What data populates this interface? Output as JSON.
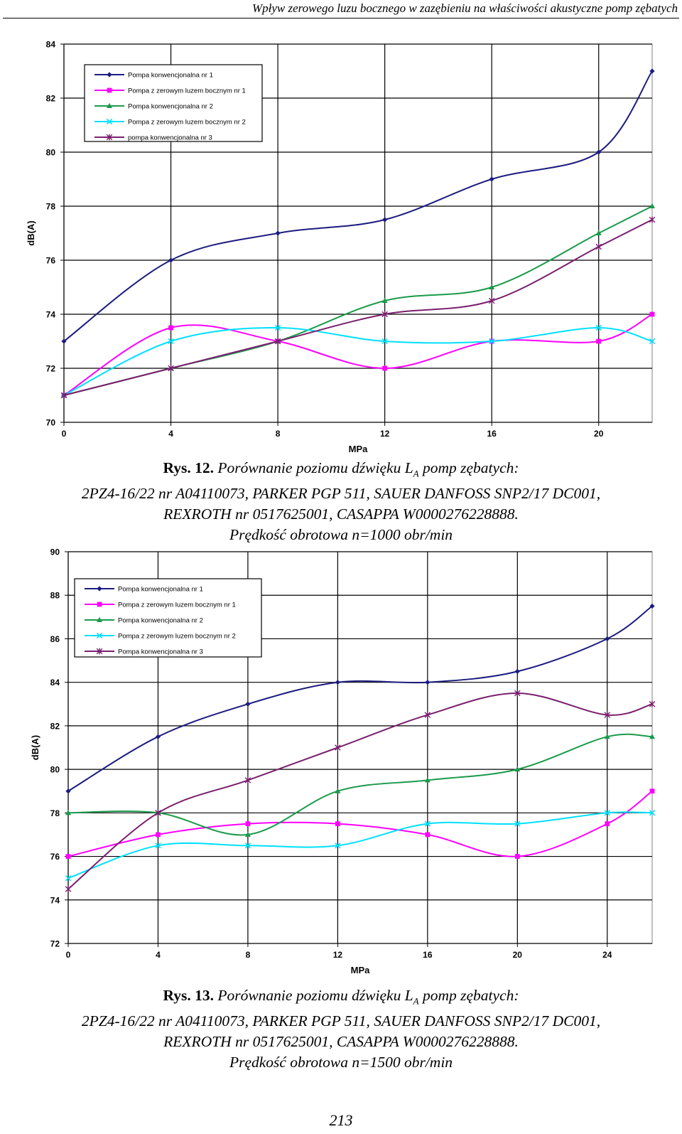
{
  "header": {
    "running_title": "Wpływ zerowego luzu bocznego w zazębieniu na właściwości akustyczne pomp zębatych"
  },
  "chart_data": [
    {
      "type": "line",
      "xlabel": "MPa",
      "ylabel": "dB(A)",
      "xlim": [
        0,
        22
      ],
      "ylim": [
        70,
        84
      ],
      "x_ticks": [
        0,
        4,
        8,
        12,
        16,
        20
      ],
      "y_ticks": [
        70,
        72,
        74,
        76,
        78,
        80,
        82,
        84
      ],
      "grid": true,
      "legend_placement": "top-left",
      "x": [
        0,
        4,
        8,
        12,
        16,
        20,
        22
      ],
      "series": [
        {
          "name": "Pompa konwencjonalna nr 1",
          "values": [
            73,
            76,
            77,
            77.5,
            79,
            80,
            83
          ],
          "color": "#1c1c80",
          "marker": "diamond"
        },
        {
          "name": "Pompa z zerowym luzem bocznym nr 1",
          "values": [
            71,
            73.5,
            73,
            72,
            73,
            73,
            74
          ],
          "color": "#ff00ff",
          "marker": "square"
        },
        {
          "name": "Pompa konwencjonalna nr 2",
          "values": [
            71,
            72,
            73,
            74.5,
            75,
            77,
            78
          ],
          "color": "#1a9a4a",
          "marker": "triangle"
        },
        {
          "name": "Pompa z zerowym luzem bocznym nr 2",
          "values": [
            71,
            73,
            73.5,
            73,
            73,
            73.5,
            73
          ],
          "color": "#00e0ff",
          "marker": "x"
        },
        {
          "name": "pompa konwencjonalna nr 3",
          "values": [
            71,
            72,
            73,
            74,
            74.5,
            76.5,
            77.5
          ],
          "color": "#7a1f6e",
          "marker": "star"
        }
      ]
    },
    {
      "type": "line",
      "xlabel": "MPa",
      "ylabel": "dB(A)",
      "xlim": [
        0,
        26
      ],
      "ylim": [
        72,
        90
      ],
      "x_ticks": [
        0,
        4,
        8,
        12,
        16,
        20,
        24
      ],
      "y_ticks": [
        72,
        74,
        76,
        78,
        80,
        82,
        84,
        86,
        88,
        90
      ],
      "grid": true,
      "legend_placement": "top-left",
      "x": [
        0,
        4,
        8,
        12,
        16,
        20,
        24,
        26
      ],
      "series": [
        {
          "name": "Pompa konwencjonalna nr 1",
          "values": [
            79,
            81.5,
            83,
            84,
            84,
            84.5,
            86,
            87.5
          ],
          "color": "#1c1c80",
          "marker": "diamond"
        },
        {
          "name": "Pompa z zerowym luzem bocznym nr 1",
          "values": [
            76,
            77,
            77.5,
            77.5,
            77,
            76,
            77.5,
            79
          ],
          "color": "#ff00ff",
          "marker": "square"
        },
        {
          "name": "Pompa konwencjonalna nr 2",
          "values": [
            78,
            78,
            77,
            79,
            79.5,
            80,
            81.5,
            81.5
          ],
          "color": "#1a9a4a",
          "marker": "triangle"
        },
        {
          "name": "Pompa z zerowym luzem bocznym nr 2",
          "values": [
            75,
            76.5,
            76.5,
            76.5,
            77.5,
            77.5,
            78,
            78
          ],
          "color": "#00e0ff",
          "marker": "x"
        },
        {
          "name": "Pompa konwencjonalna nr 3",
          "values": [
            74.5,
            78,
            79.5,
            81,
            82.5,
            83.5,
            82.5,
            83
          ],
          "color": "#7a1f6e",
          "marker": "star"
        }
      ]
    }
  ],
  "captions": [
    {
      "label": "Rys. 12.",
      "title_pre": "Porównanie poziomu dźwięku L",
      "title_sub": "A",
      "title_post": "pomp zębatych:",
      "line2": "2PZ4-16/22 nr A04110073, PARKER PGP 511, SAUER DANFOSS SNP2/17 DC001,",
      "line3": "REXROTH nr 0517625001, CASAPPA W0000276228888.",
      "line4": "Prędkość obrotowa n=1000 obr/min"
    },
    {
      "label": "Rys. 13.",
      "title_pre": "Porównanie poziomu dźwięku L",
      "title_sub": "A",
      "title_post": "pomp zębatych:",
      "line2": "2PZ4-16/22 nr A04110073, PARKER PGP 511, SAUER DANFOSS SNP2/17 DC001,",
      "line3": "REXROTH nr 0517625001, CASAPPA W0000276228888.",
      "line4": "Prędkość obrotowa n=1500 obr/min"
    }
  ],
  "page_number": "213"
}
